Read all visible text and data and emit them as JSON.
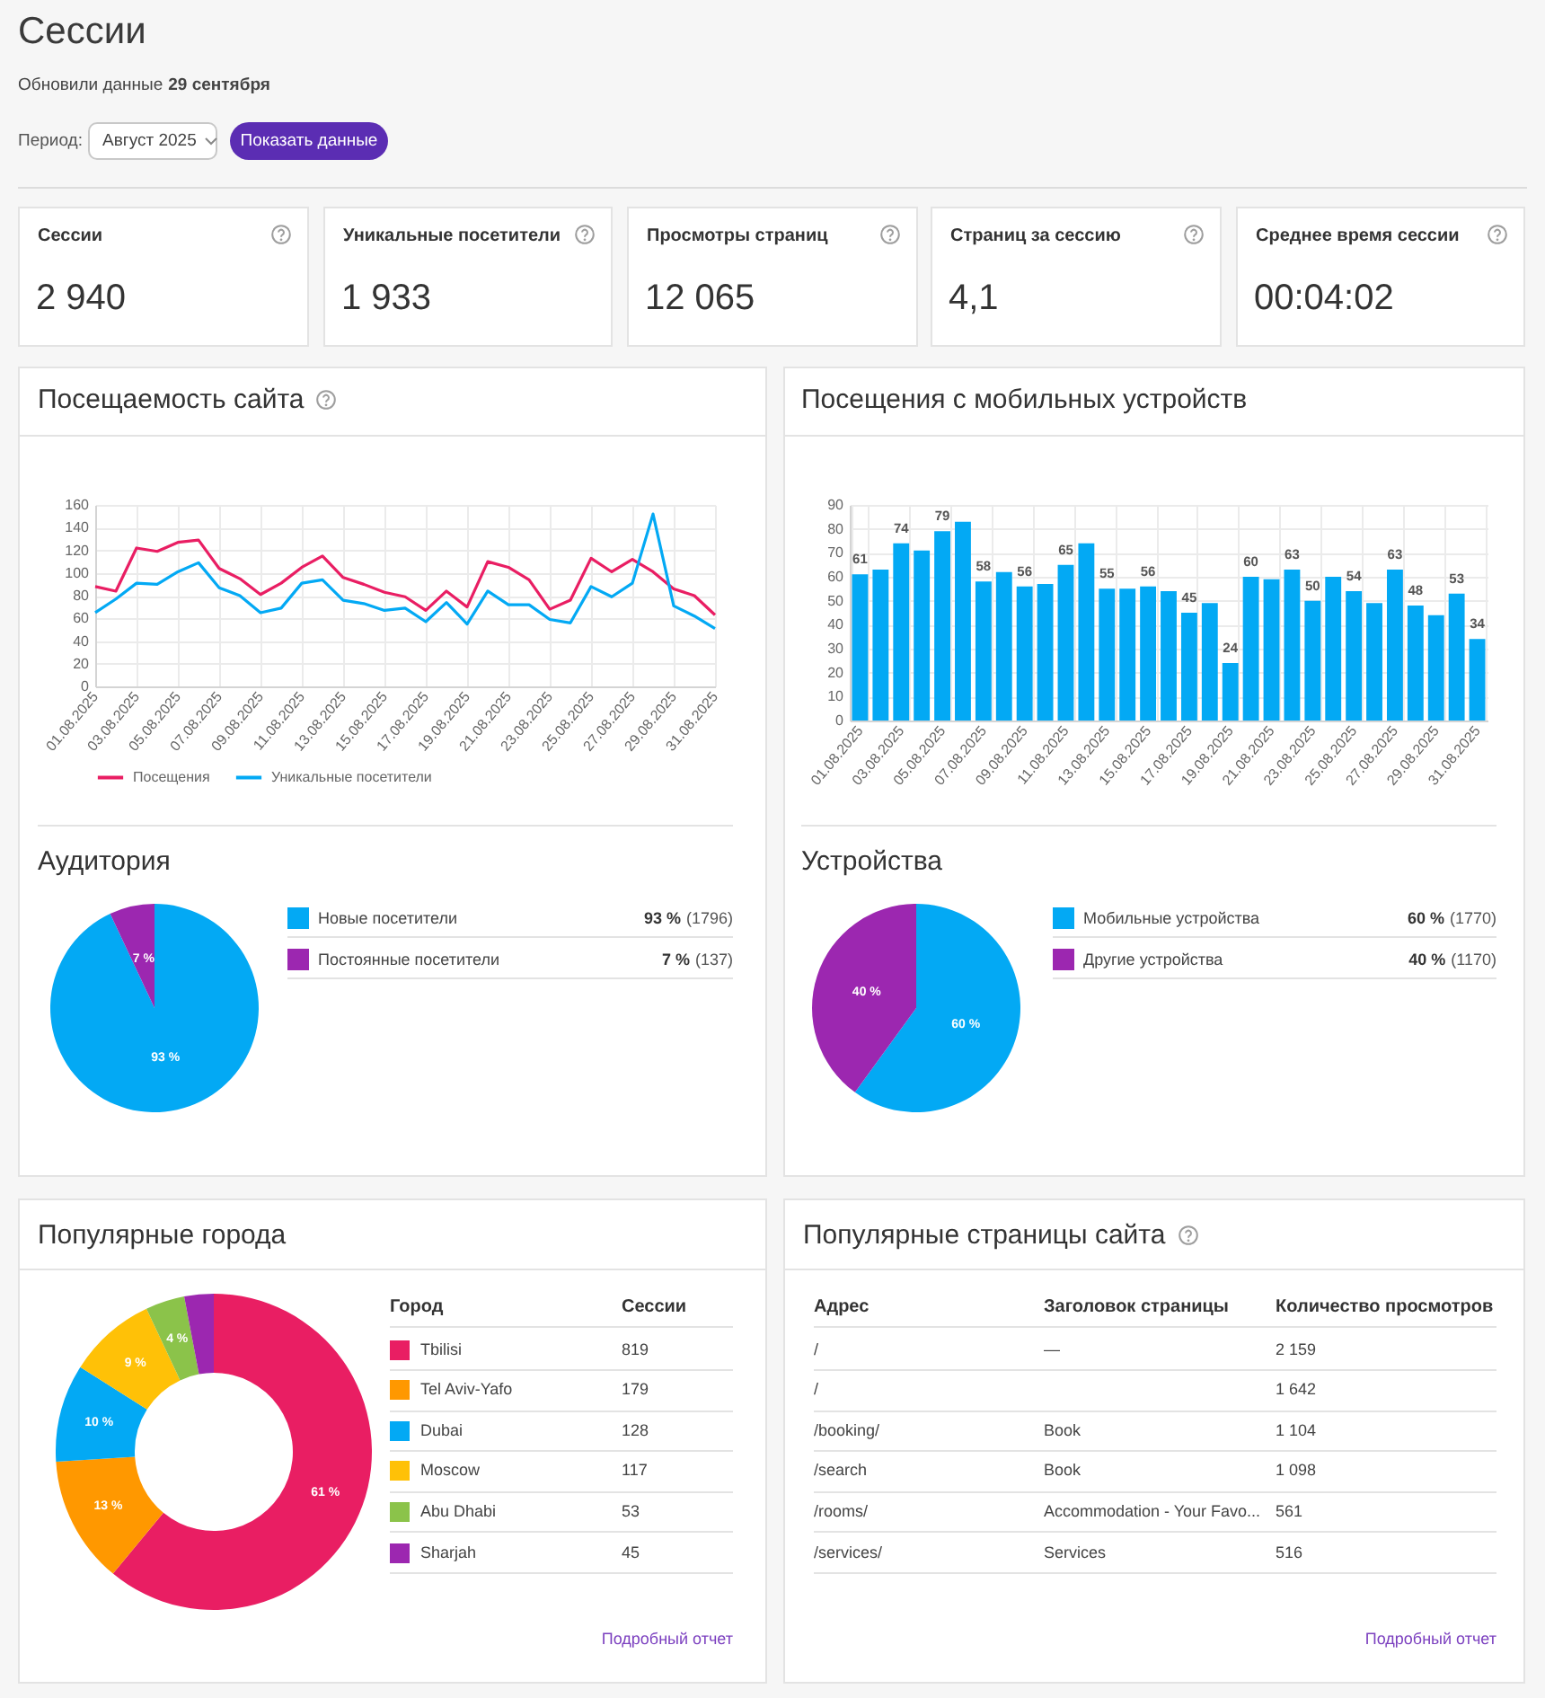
{
  "chart_data": [
    {
      "type": "other",
      "title": "Сессии",
      "annotations": [
        "Обновили данные",
        "29 сентября",
        "Период:",
        "Август 2025",
        "Показать данные"
      ]
    },
    {
      "type": "other",
      "title": "Сессии",
      "annotations": [
        "2 940"
      ]
    },
    {
      "type": "other",
      "title": "Уникальные посетители",
      "annotations": [
        "1 933"
      ]
    },
    {
      "type": "other",
      "title": "Просмотры страниц",
      "annotations": [
        "12 065"
      ]
    },
    {
      "type": "other",
      "title": "Страниц за сессию",
      "annotations": [
        "4,1"
      ]
    },
    {
      "type": "other",
      "title": "Среднее время сессии",
      "annotations": [
        "00:04:02"
      ]
    },
    {
      "type": "line",
      "title": "Посещаемость сайта",
      "categories": [
        "01.08.2025",
        null,
        "03.08.2025",
        null,
        "05.08.2025",
        null,
        "07.08.2025",
        null,
        "09.08.2025",
        null,
        "11.08.2025",
        null,
        "13.08.2025",
        null,
        "15.08.2025",
        null,
        "17.08.2025",
        null,
        "19.08.2025",
        null,
        "21.08.2025",
        null,
        "23.08.2025",
        null,
        "25.08.2025",
        null,
        "27.08.2025",
        null,
        "29.08.2025",
        null,
        "31.08.2025"
      ],
      "series": [
        {
          "name": "Посещения",
          "color": "#e91e63",
          "values": [
            88,
            84,
            122,
            119,
            127,
            129,
            104,
            95,
            81,
            91,
            105,
            115,
            96,
            90,
            83,
            79,
            67,
            84,
            70,
            110,
            105,
            94,
            68,
            76,
            113,
            101,
            112,
            101,
            86,
            80,
            63
          ]
        },
        {
          "name": "Уникальные посетители",
          "color": "#03a9f4",
          "values": [
            65,
            77,
            91,
            90,
            101,
            109,
            87,
            80,
            65,
            69,
            91,
            94,
            76,
            73,
            67,
            69,
            57,
            74,
            55,
            84,
            72,
            72,
            59,
            56,
            88,
            79,
            91,
            152,
            71,
            62,
            51
          ]
        }
      ],
      "ylim": [
        0,
        160
      ],
      "yticks": [
        0,
        20,
        40,
        60,
        80,
        100,
        120,
        140,
        160
      ],
      "grid": true,
      "legend": "bottom"
    },
    {
      "type": "bar",
      "title": "Посещения с мобильных устройств",
      "categories": [
        "01.08.2025",
        null,
        "03.08.2025",
        null,
        "05.08.2025",
        null,
        "07.08.2025",
        null,
        "09.08.2025",
        null,
        "11.08.2025",
        null,
        "13.08.2025",
        null,
        "15.08.2025",
        null,
        "17.08.2025",
        null,
        "19.08.2025",
        null,
        "21.08.2025",
        null,
        "23.08.2025",
        null,
        "25.08.2025",
        null,
        "27.08.2025",
        null,
        "29.08.2025",
        null,
        "31.08.2025"
      ],
      "values": [
        61,
        63,
        74,
        71,
        79,
        83,
        58,
        62,
        56,
        57,
        65,
        74,
        55,
        55,
        56,
        54,
        45,
        49,
        24,
        60,
        59,
        63,
        50,
        60,
        54,
        49,
        63,
        48,
        44,
        53,
        34
      ],
      "value_labels": [
        "61",
        null,
        "74",
        null,
        "79",
        null,
        "58",
        null,
        "56",
        null,
        "65",
        null,
        "55",
        null,
        "56",
        null,
        "45",
        null,
        "24",
        "60",
        null,
        "63",
        "50",
        null,
        "54",
        null,
        "63",
        "48",
        null,
        "53",
        "34"
      ],
      "color": "#03a9f4",
      "ylim": [
        0,
        90
      ],
      "yticks": [
        0,
        10,
        20,
        30,
        40,
        50,
        60,
        70,
        80,
        90
      ],
      "grid": true
    },
    {
      "type": "pie",
      "title": "Аудитория",
      "categories": [
        "Новые посетители",
        "Постоянные посетители"
      ],
      "values": [
        93,
        7
      ],
      "colors": [
        "#03a9f4",
        "#9c27b0"
      ],
      "value_labels": [
        "93 %",
        "7 %"
      ],
      "legend": "right",
      "annotations": [
        "(1796)",
        "(137)"
      ]
    },
    {
      "type": "pie",
      "title": "Устройства",
      "categories": [
        "Мобильные устройства",
        "Другие устройства"
      ],
      "values": [
        60,
        40
      ],
      "colors": [
        "#03a9f4",
        "#9c27b0"
      ],
      "value_labels": [
        "60 %",
        "40 %"
      ],
      "legend": "right",
      "annotations": [
        "(1770)",
        "(1170)"
      ]
    },
    {
      "type": "donut",
      "title": "Популярные города",
      "categories": [
        "Tbilisi",
        "Tel Aviv-Yafo",
        "Dubai",
        "Moscow",
        "Abu Dhabi",
        "Sharjah"
      ],
      "values": [
        61,
        13,
        10,
        9,
        4,
        3
      ],
      "colors": [
        "#e91e63",
        "#ff9800",
        "#03a9f4",
        "#ffc107",
        "#8bc34a",
        "#9c27b0"
      ],
      "value_labels": [
        "61 %",
        "13 %",
        "10 %",
        "9 %",
        "4 %",
        null
      ],
      "legend": "right",
      "legend_title": "Город",
      "annotations": [
        "Сессии",
        "819",
        "179",
        "128",
        "117",
        "53",
        "45",
        "Подробный отчет"
      ]
    },
    {
      "type": "other",
      "title": "Популярные страницы сайта",
      "categories": [
        "—",
        null,
        "Book",
        "Book",
        "Accommodation - Your Favo...",
        "Services"
      ],
      "annotations": [
        "Адрес",
        "Заголовок страницы",
        "Количество просмотров",
        "/",
        "2 159",
        "/",
        "1 642",
        "/booking/",
        "1 104",
        "/search",
        "1 098",
        "/rooms/",
        "561",
        "/services/",
        "516",
        "Подробный отчет"
      ]
    }
  ]
}
